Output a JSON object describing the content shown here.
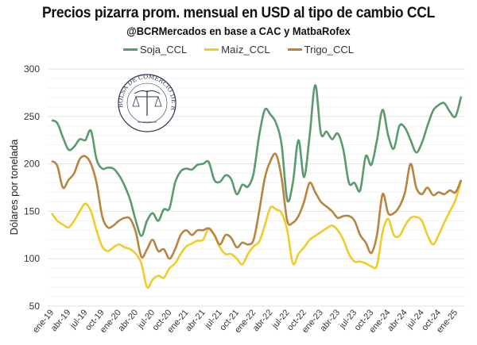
{
  "chart_data": {
    "type": "line",
    "title": "Precios pizarra prom. mensual en USD al tipo de cambio CCL",
    "subtitle": "@BCRMercados en base a CAC y MatbaRofex",
    "xlabel": "",
    "ylabel": "Dólares por tonelada",
    "ylim": [
      50,
      300
    ],
    "yticks": [
      50,
      100,
      150,
      200,
      250,
      300
    ],
    "grid": true,
    "legend_position": "top-center",
    "x_start": "ene-19",
    "x_frequency": "monthly",
    "xtick_labels": [
      "ene-19",
      "abr-19",
      "jul-19",
      "oct-19",
      "ene-20",
      "abr-20",
      "jul-20",
      "oct-20",
      "ene-21",
      "abr-21",
      "jul-21",
      "oct-21",
      "ene-22",
      "abr-22",
      "jul-22",
      "oct-22",
      "ene-23",
      "abr-23",
      "jul-23",
      "oct-23",
      "ene-24",
      "abr-24",
      "jul-24",
      "oct-24",
      "ene-25"
    ],
    "series": [
      {
        "name": "Soja_CCL",
        "color": "#5b9a6e",
        "values": [
          246,
          243,
          228,
          215,
          218,
          226,
          225,
          235,
          205,
          195,
          196,
          195,
          188,
          177,
          162,
          140,
          124,
          140,
          148,
          140,
          152,
          153,
          180,
          192,
          195,
          194,
          199,
          200,
          202,
          183,
          181,
          188,
          184,
          168,
          178,
          176,
          190,
          230,
          257,
          252,
          243,
          220,
          162,
          180,
          225,
          186,
          230,
          283,
          232,
          234,
          226,
          232,
          215,
          180,
          180,
          172,
          208,
          199,
          225,
          257,
          230,
          216,
          240,
          238,
          225,
          212,
          222,
          240,
          256,
          262,
          264,
          255,
          250,
          271
        ]
      },
      {
        "name": "Maíz_CCL",
        "color": "#f0cc2a",
        "values": [
          148,
          140,
          136,
          133,
          140,
          150,
          158,
          150,
          130,
          113,
          108,
          112,
          115,
          112,
          110,
          105,
          95,
          70,
          78,
          82,
          80,
          90,
          95,
          105,
          113,
          116,
          119,
          120,
          132,
          125,
          112,
          105,
          105,
          100,
          94,
          105,
          113,
          118,
          135,
          154,
          152,
          148,
          130,
          95,
          105,
          112,
          120,
          124,
          128,
          132,
          135,
          130,
          120,
          105,
          97,
          97,
          95,
          92,
          93,
          128,
          142,
          125,
          124,
          135,
          143,
          144,
          140,
          125,
          115,
          125,
          138,
          150,
          162,
          182
        ]
      },
      {
        "name": "Trigo_CCL",
        "color": "#b8843e",
        "values": [
          203,
          198,
          175,
          183,
          190,
          205,
          208,
          200,
          180,
          145,
          133,
          135,
          140,
          143,
          142,
          128,
          102,
          110,
          120,
          108,
          110,
          100,
          110,
          125,
          130,
          125,
          130,
          130,
          132,
          125,
          115,
          125,
          122,
          112,
          117,
          115,
          120,
          150,
          185,
          203,
          210,
          185,
          140,
          138,
          145,
          160,
          180,
          170,
          160,
          155,
          150,
          143,
          145,
          145,
          140,
          125,
          117,
          106,
          125,
          168,
          148,
          148,
          155,
          170,
          200,
          175,
          168,
          175,
          167,
          170,
          168,
          172,
          170,
          183
        ]
      }
    ]
  },
  "logo": {
    "text": "BOLSA DE COMERCIO DE ROSARIO"
  }
}
